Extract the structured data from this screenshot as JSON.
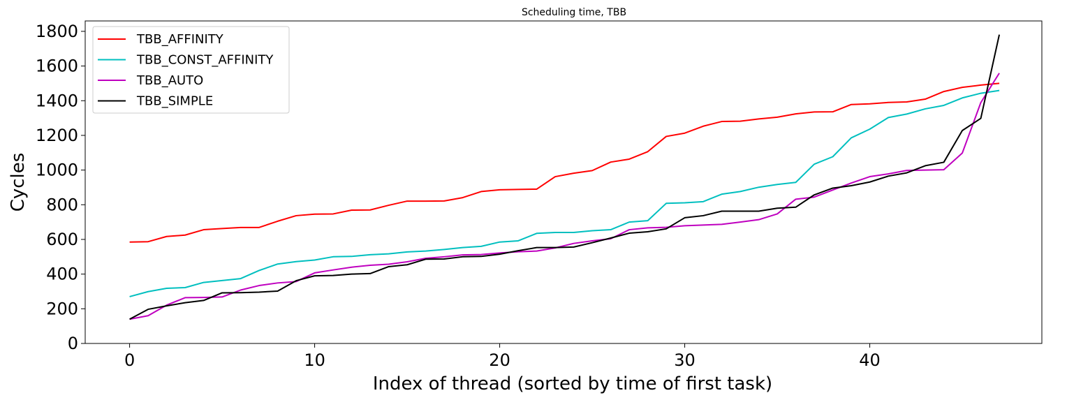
{
  "chart_data": {
    "type": "line",
    "title": "Scheduling time, TBB",
    "xlabel": "Index of thread (sorted by time of first task)",
    "ylabel": "Cycles",
    "xlim": [
      -2.4,
      49.3
    ],
    "ylim": [
      0,
      1860
    ],
    "x_ticks": [
      0,
      10,
      20,
      30,
      40
    ],
    "y_ticks": [
      0,
      200,
      400,
      600,
      800,
      1000,
      1200,
      1400,
      1600,
      1800
    ],
    "grid": false,
    "legend_position": "top-left",
    "x": [
      0,
      1,
      2,
      3,
      4,
      5,
      6,
      7,
      8,
      9,
      10,
      11,
      12,
      13,
      14,
      15,
      16,
      17,
      18,
      19,
      20,
      21,
      22,
      23,
      24,
      25,
      26,
      27,
      28,
      29,
      30,
      31,
      32,
      33,
      34,
      35,
      36,
      37,
      38,
      39,
      40,
      41,
      42,
      43,
      44,
      45,
      46,
      47
    ],
    "series": [
      {
        "name": "TBB_AFFINITY",
        "color": "#ff0000",
        "values": [
          585,
          587,
          617,
          625,
          656,
          663,
          669,
          669,
          705,
          737,
          746,
          747,
          769,
          770,
          797,
          821,
          821,
          822,
          841,
          876,
          886,
          888,
          890,
          962,
          982,
          997,
          1046,
          1063,
          1106,
          1194,
          1213,
          1253,
          1280,
          1282,
          1295,
          1305,
          1324,
          1335,
          1336,
          1378,
          1382,
          1390,
          1393,
          1409,
          1453,
          1477,
          1490,
          1500
        ]
      },
      {
        "name": "TBB_CONST_AFFINITY",
        "color": "#00bfbf",
        "values": [
          270,
          299,
          318,
          322,
          352,
          363,
          374,
          421,
          458,
          472,
          481,
          500,
          502,
          512,
          517,
          528,
          533,
          542,
          553,
          560,
          585,
          592,
          635,
          640,
          640,
          650,
          656,
          700,
          708,
          808,
          811,
          818,
          861,
          876,
          901,
          917,
          929,
          1034,
          1077,
          1186,
          1236,
          1303,
          1323,
          1353,
          1373,
          1416,
          1443,
          1459
        ]
      },
      {
        "name": "TBB_AUTO",
        "color": "#bf00bf",
        "values": [
          140,
          160,
          221,
          264,
          265,
          268,
          308,
          334,
          349,
          357,
          407,
          424,
          440,
          451,
          457,
          471,
          491,
          500,
          511,
          513,
          522,
          529,
          533,
          551,
          577,
          592,
          604,
          656,
          667,
          670,
          679,
          683,
          687,
          700,
          714,
          747,
          832,
          844,
          885,
          925,
          962,
          978,
          998,
          1000,
          1002,
          1098,
          1389,
          1559
        ]
      },
      {
        "name": "TBB_SIMPLE",
        "color": "#000000",
        "values": [
          140,
          197,
          217,
          235,
          248,
          292,
          293,
          296,
          302,
          362,
          390,
          392,
          400,
          403,
          443,
          454,
          486,
          487,
          500,
          502,
          515,
          535,
          553,
          553,
          556,
          581,
          608,
          636,
          644,
          661,
          725,
          737,
          763,
          763,
          763,
          780,
          786,
          857,
          896,
          910,
          931,
          965,
          984,
          1025,
          1045,
          1228,
          1298,
          1781
        ]
      }
    ]
  }
}
